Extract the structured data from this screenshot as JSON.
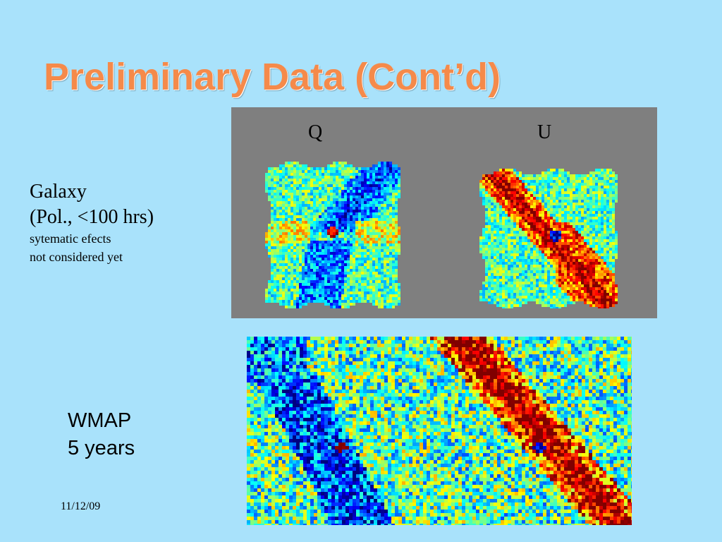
{
  "slide": {
    "title": "Preliminary Data (Cont’d)",
    "date": "11/12/09",
    "background_color": "#a9e2fb",
    "title_color": "#f58a4a"
  },
  "galaxy_caption": {
    "line1": "Galaxy",
    "line2": "(Pol., <100 hrs)",
    "note1": "sytematic efects",
    "note2": "not considered yet"
  },
  "wmap_caption": {
    "line1": "WMAP",
    "line2": "5 years"
  },
  "maps": {
    "q_label": "Q",
    "u_label": "U",
    "colormap": "jet",
    "panel_background": "#7f7f7f"
  }
}
